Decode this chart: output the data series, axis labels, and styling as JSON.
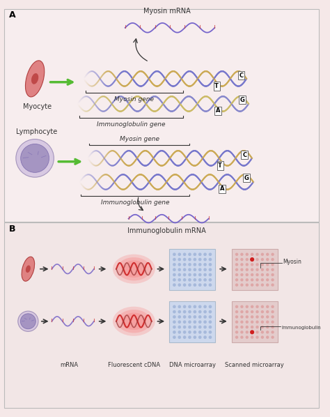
{
  "bg_color": "#f5e8e8",
  "panel_a_bg": "#f5e8e8",
  "panel_b_bg": "#f0e0e0",
  "border_color": "#ccaaaa",
  "title_a": "A",
  "title_b": "B",
  "dna_color1": "#6666cc",
  "dna_color2": "#cc9944",
  "dna_color3": "#aa3333",
  "mrna_color": "#6655bb",
  "arrow_color": "#555555",
  "green_arrow": "#88cc44",
  "myocyte_color": "#dd6666",
  "lymphocyte_color": "#aa99cc",
  "label_myocyte": "Myocyte",
  "label_lymphocyte": "Lymphocyte",
  "label_myosin_mrna": "Myosin mRNA",
  "label_myosin_gene": "Myosin gene",
  "label_immuno_gene": "Immunoglobulin gene",
  "label_immuno_mrna": "Immunoglobulin mRNA",
  "label_mrna": "mRNA",
  "label_fluor": "Fluorescent cDNA",
  "label_dna_array": "DNA microarray",
  "label_scanned": "Scanned microarray",
  "label_myosin": "Myosin",
  "label_immunoglobulin": "Immunoglobulin",
  "nucleotides_tc": [
    "T",
    "C"
  ],
  "nucleotides_ag": [
    "A",
    "G"
  ],
  "font_size_label": 7,
  "font_size_small": 6,
  "font_size_nucleotide": 6
}
